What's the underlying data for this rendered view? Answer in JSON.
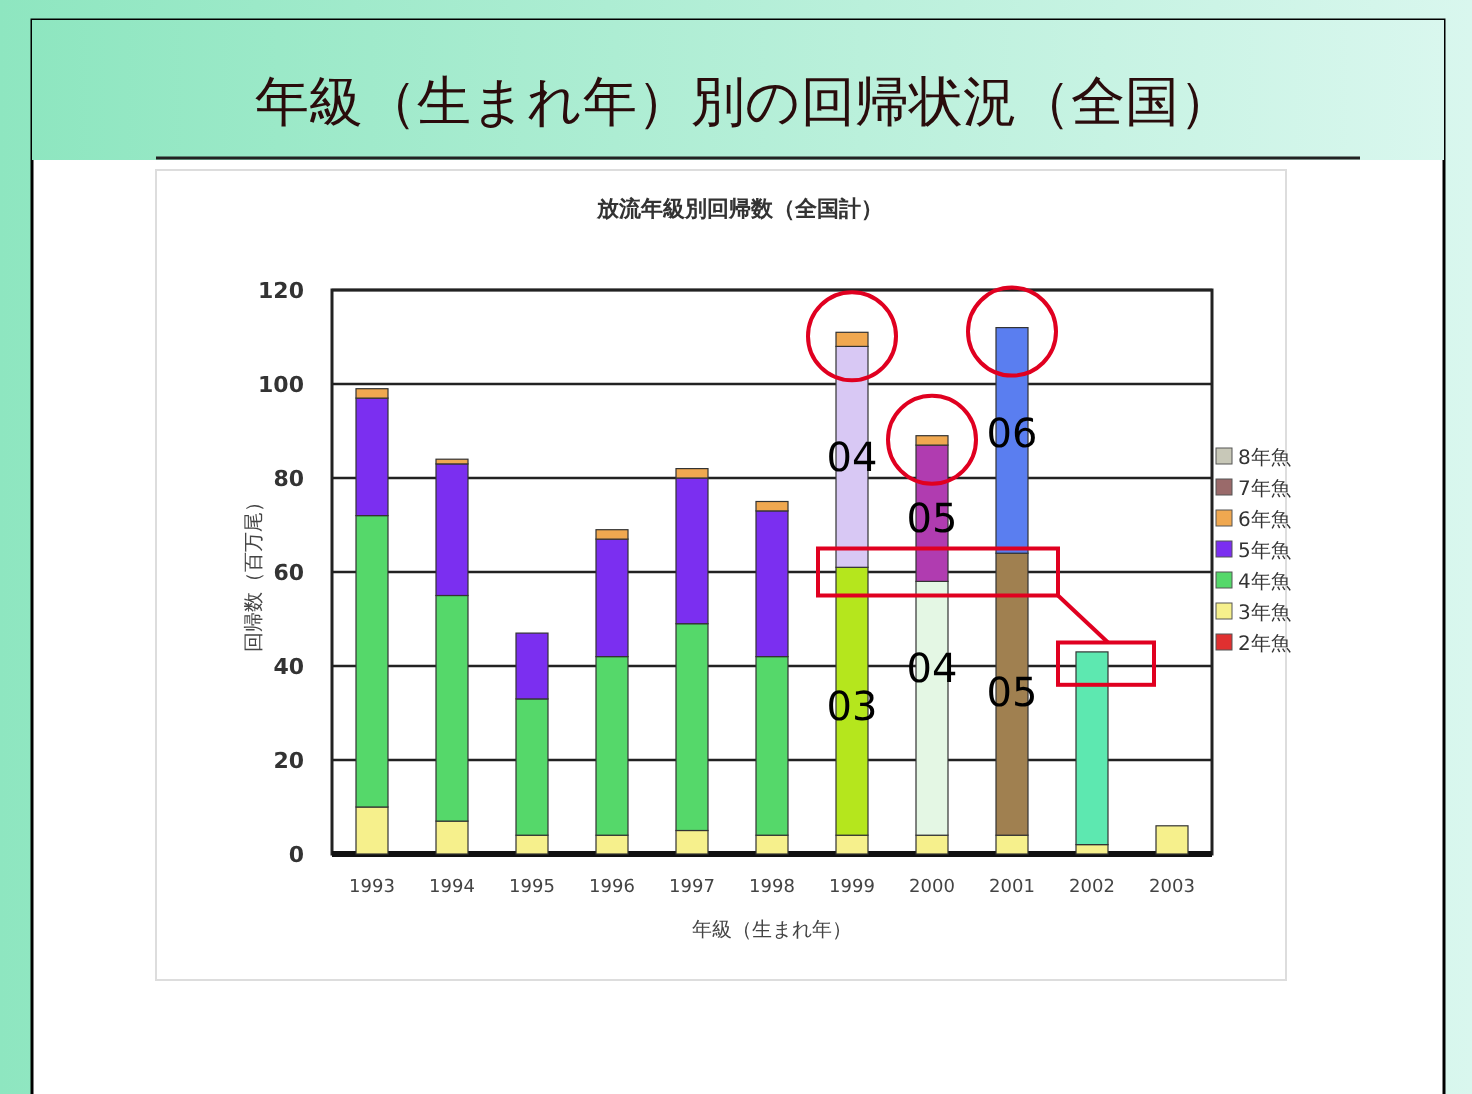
{
  "chart_data": {
    "type": "bar",
    "stacked": true,
    "title": "年級（生まれ年）別の回帰状況（全国）",
    "subtitle": "放流年級別回帰数（全国計）",
    "xlabel": "年級（生まれ年）",
    "ylabel": "回帰数（百万尾）",
    "categories": [
      "1993",
      "1994",
      "1995",
      "1996",
      "1997",
      "1998",
      "1999",
      "2000",
      "2001",
      "2002",
      "2003"
    ],
    "ylim": [
      0,
      120
    ],
    "yticks": [
      0,
      20,
      40,
      60,
      80,
      100,
      120
    ],
    "grid": "y",
    "legend": "right",
    "series": [
      {
        "name": "2年魚",
        "color": "#e03030",
        "values": [
          null,
          null,
          null,
          null,
          null,
          null,
          null,
          null,
          null,
          null,
          null
        ]
      },
      {
        "name": "3年魚",
        "color": "#f6f08c",
        "values": [
          10,
          7,
          4,
          4,
          5,
          4,
          4,
          4,
          4,
          2,
          6
        ]
      },
      {
        "name": "4年魚",
        "color": "#55d86a",
        "colors": [
          "#55d86a",
          "#55d86a",
          "#55d86a",
          "#55d86a",
          "#55d86a",
          "#55d86a",
          "#b5e61d",
          "#e4f7e4",
          "#a08050",
          "#5de8b0",
          "#55d86a"
        ],
        "values": [
          62,
          48,
          29,
          38,
          44,
          38,
          57,
          54,
          60,
          41,
          null
        ]
      },
      {
        "name": "5年魚",
        "color": "#7b2ff0",
        "colors": [
          "#7b2ff0",
          "#7b2ff0",
          "#7b2ff0",
          "#7b2ff0",
          "#7b2ff0",
          "#7b2ff0",
          "#d8c8f4",
          "#b03cb0",
          "#5a7ef0",
          "#7b2ff0",
          "#7b2ff0"
        ],
        "values": [
          25,
          28,
          14,
          25,
          31,
          31,
          47,
          29,
          48,
          null,
          null
        ]
      },
      {
        "name": "6年魚",
        "color": "#f0a850",
        "values": [
          2,
          1,
          null,
          2,
          2,
          2,
          3,
          2,
          null,
          null,
          null
        ]
      },
      {
        "name": "7年魚",
        "color": "#9a6a6a",
        "values": [
          null,
          null,
          null,
          null,
          null,
          null,
          null,
          null,
          null,
          null,
          null
        ]
      },
      {
        "name": "8年魚",
        "color": "#c8c8b8",
        "values": [
          null,
          null,
          null,
          null,
          null,
          null,
          null,
          null,
          null,
          null,
          null
        ]
      }
    ],
    "annotations": [
      "03",
      "04",
      "04",
      "05",
      "06",
      "05"
    ]
  }
}
